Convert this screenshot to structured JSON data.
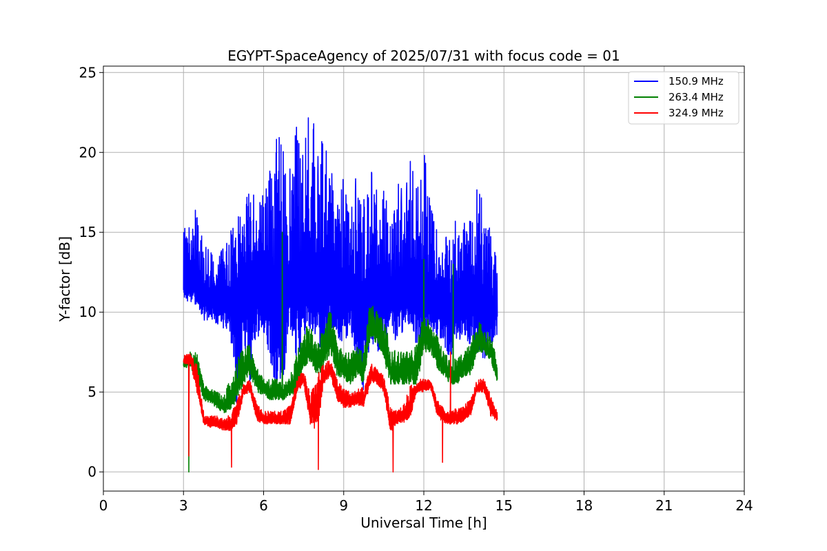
{
  "chart_data": {
    "type": "line",
    "title": "EGYPT-SpaceAgency of 2025/07/31 with focus code = 01",
    "xlabel": "Universal Time [h]",
    "ylabel": "Y-factor [dB]",
    "xlim": [
      0,
      24
    ],
    "ylim": [
      -1.2,
      25.4
    ],
    "xticks": [
      0,
      3,
      6,
      9,
      12,
      15,
      18,
      21,
      24
    ],
    "yticks": [
      0,
      5,
      10,
      15,
      20,
      25
    ],
    "grid": true,
    "legend_position": "top-right",
    "series": [
      {
        "name": "150.9 MHz",
        "color": "#0000ff",
        "x": [
          3.0,
          3.25,
          3.5,
          3.75,
          4.0,
          4.25,
          4.5,
          4.75,
          5.0,
          5.25,
          5.5,
          5.75,
          6.0,
          6.25,
          6.5,
          6.75,
          7.0,
          7.25,
          7.5,
          7.75,
          8.0,
          8.25,
          8.5,
          8.75,
          9.0,
          9.25,
          9.5,
          9.75,
          10.0,
          10.25,
          10.5,
          10.75,
          11.0,
          11.25,
          11.5,
          11.75,
          12.0,
          12.25,
          12.5,
          12.75,
          13.0,
          13.25,
          13.5,
          13.75,
          14.0,
          14.25,
          14.5,
          14.75
        ],
        "low": [
          11.0,
          10.5,
          10.5,
          9.5,
          9.5,
          9.3,
          9.0,
          8.8,
          4.0,
          8.5,
          5.5,
          8.5,
          8.5,
          7.0,
          5.0,
          6.0,
          9.0,
          7.0,
          8.5,
          9.0,
          8.5,
          7.0,
          9.0,
          8.5,
          8.0,
          9.0,
          7.0,
          5.0,
          8.0,
          7.5,
          8.0,
          9.0,
          8.0,
          9.0,
          8.5,
          8.0,
          8.5,
          9.0,
          8.5,
          8.0,
          7.0,
          8.5,
          8.0,
          8.0,
          7.5,
          7.0,
          8.0,
          8.5
        ],
        "high": [
          15.0,
          16.2,
          16.5,
          14.2,
          13.8,
          13.5,
          14.0,
          15.0,
          15.8,
          17.0,
          18.2,
          17.0,
          18.0,
          19.5,
          21.4,
          20.0,
          19.0,
          21.8,
          19.5,
          24.2,
          19.5,
          21.2,
          19.3,
          16.5,
          18.5,
          16.0,
          19.0,
          17.0,
          19.0,
          17.5,
          18.0,
          16.5,
          19.0,
          17.0,
          19.5,
          17.5,
          20.3,
          16.5,
          15.5,
          14.8,
          14.5,
          16.2,
          15.5,
          16.5,
          18.2,
          16.5,
          15.0,
          14.0
        ],
        "mid": [
          12.0,
          12.5,
          12.0,
          11.5,
          11.0,
          11.2,
          11.0,
          11.5,
          12.0,
          12.5,
          12.8,
          12.5,
          12.0,
          12.5,
          13.0,
          12.0,
          12.5,
          13.0,
          12.5,
          13.0,
          12.5,
          12.8,
          12.5,
          12.0,
          12.0,
          11.8,
          12.0,
          11.5,
          11.5,
          12.0,
          12.0,
          11.5,
          12.0,
          12.0,
          12.5,
          12.0,
          12.0,
          11.5,
          11.5,
          11.0,
          11.0,
          11.5,
          11.0,
          11.5,
          12.0,
          11.5,
          11.0,
          11.0
        ]
      },
      {
        "name": "263.4 MHz",
        "color": "#008000",
        "x": [
          3.0,
          3.25,
          3.5,
          3.75,
          4.0,
          4.25,
          4.5,
          4.75,
          5.0,
          5.25,
          5.5,
          5.75,
          6.0,
          6.25,
          6.5,
          6.75,
          7.0,
          7.25,
          7.5,
          7.75,
          8.0,
          8.25,
          8.5,
          8.75,
          9.0,
          9.25,
          9.5,
          9.75,
          10.0,
          10.25,
          10.5,
          10.75,
          11.0,
          11.25,
          11.5,
          11.75,
          12.0,
          12.25,
          12.5,
          12.75,
          13.0,
          13.25,
          13.5,
          13.75,
          14.0,
          14.25,
          14.5,
          14.75
        ],
        "low": [
          6.5,
          6.5,
          6.0,
          4.5,
          4.3,
          4.0,
          3.7,
          3.8,
          4.5,
          5.5,
          6.0,
          5.0,
          4.8,
          4.5,
          4.5,
          4.5,
          4.8,
          5.0,
          6.5,
          7.0,
          6.0,
          6.5,
          7.5,
          6.0,
          5.8,
          5.5,
          6.0,
          5.5,
          8.5,
          8.0,
          7.0,
          5.5,
          5.5,
          5.5,
          5.5,
          5.5,
          7.5,
          7.5,
          6.5,
          6.0,
          5.5,
          5.5,
          6.0,
          6.0,
          7.5,
          7.5,
          7.0,
          5.5
        ],
        "high": [
          7.0,
          7.5,
          7.5,
          5.5,
          5.2,
          5.0,
          4.8,
          5.8,
          7.0,
          7.8,
          8.0,
          6.5,
          5.8,
          5.8,
          5.8,
          5.5,
          6.0,
          7.5,
          9.0,
          9.2,
          8.0,
          9.0,
          10.3,
          8.0,
          7.5,
          7.5,
          7.8,
          7.5,
          10.8,
          10.0,
          9.5,
          8.0,
          7.5,
          7.5,
          7.5,
          8.0,
          10.0,
          9.2,
          8.5,
          7.5,
          7.0,
          7.2,
          7.5,
          8.0,
          9.5,
          9.0,
          8.5,
          7.0
        ],
        "mid": [
          6.8,
          7.0,
          7.0,
          5.0,
          4.8,
          4.5,
          4.2,
          4.5,
          5.5,
          6.5,
          7.0,
          5.8,
          5.3,
          5.2,
          5.2,
          5.0,
          5.3,
          6.0,
          7.5,
          8.0,
          7.0,
          7.5,
          8.8,
          7.0,
          6.5,
          6.5,
          7.0,
          6.5,
          9.5,
          9.0,
          8.0,
          6.5,
          6.5,
          6.5,
          6.5,
          7.0,
          9.0,
          8.5,
          7.5,
          6.8,
          6.3,
          6.3,
          6.8,
          7.0,
          8.5,
          8.2,
          7.8,
          6.0
        ],
        "spikes": [
          [
            3.2,
            0.0
          ],
          [
            6.7,
            15.0
          ],
          [
            12.0,
            13.3
          ],
          [
            13.1,
            13.0
          ]
        ]
      },
      {
        "name": "324.9 MHz",
        "color": "#ff0000",
        "x": [
          3.0,
          3.25,
          3.5,
          3.75,
          4.0,
          4.25,
          4.5,
          4.75,
          5.0,
          5.25,
          5.5,
          5.75,
          6.0,
          6.25,
          6.5,
          6.75,
          7.0,
          7.25,
          7.5,
          7.75,
          8.0,
          8.25,
          8.5,
          8.75,
          9.0,
          9.25,
          9.5,
          9.75,
          10.0,
          10.25,
          10.5,
          10.75,
          11.0,
          11.25,
          11.5,
          11.75,
          12.0,
          12.25,
          12.5,
          12.75,
          13.0,
          13.25,
          13.5,
          13.75,
          14.0,
          14.25,
          14.5,
          14.75
        ],
        "low": [
          6.7,
          6.8,
          5.0,
          3.0,
          2.8,
          2.8,
          2.6,
          2.6,
          3.0,
          4.8,
          5.0,
          3.2,
          3.0,
          3.0,
          3.0,
          3.0,
          3.0,
          5.0,
          5.5,
          3.0,
          2.5,
          5.5,
          6.0,
          4.5,
          4.0,
          4.0,
          4.2,
          4.0,
          5.5,
          5.5,
          5.0,
          2.5,
          3.0,
          3.0,
          3.5,
          5.0,
          5.0,
          5.2,
          3.5,
          3.0,
          3.0,
          3.0,
          3.2,
          3.5,
          5.0,
          5.0,
          3.5,
          3.2
        ],
        "high": [
          7.3,
          7.4,
          6.8,
          3.8,
          3.5,
          3.5,
          3.3,
          3.6,
          4.5,
          5.5,
          5.8,
          4.2,
          3.8,
          3.8,
          3.8,
          3.8,
          4.2,
          5.8,
          6.5,
          4.8,
          6.0,
          6.8,
          7.0,
          5.8,
          5.2,
          5.0,
          5.2,
          5.3,
          6.8,
          6.5,
          6.0,
          4.0,
          3.8,
          4.2,
          5.5,
          5.8,
          5.8,
          5.8,
          4.5,
          4.0,
          3.8,
          4.0,
          4.2,
          4.5,
          5.8,
          5.8,
          4.8,
          3.8
        ],
        "mid": [
          7.0,
          7.1,
          6.0,
          3.3,
          3.1,
          3.1,
          3.0,
          3.0,
          3.8,
          5.2,
          5.4,
          3.7,
          3.4,
          3.4,
          3.4,
          3.4,
          3.6,
          5.4,
          6.0,
          3.8,
          4.5,
          6.2,
          6.5,
          5.2,
          4.6,
          4.5,
          4.7,
          4.6,
          6.2,
          6.0,
          5.5,
          3.2,
          3.4,
          3.6,
          4.5,
          5.4,
          5.4,
          5.5,
          4.0,
          3.5,
          3.4,
          3.5,
          3.7,
          4.0,
          5.4,
          5.4,
          4.2,
          3.5
        ],
        "spikes": [
          [
            3.2,
            1.0
          ],
          [
            4.8,
            0.3
          ],
          [
            8.05,
            0.15
          ],
          [
            10.85,
            0.0
          ],
          [
            12.7,
            0.6
          ],
          [
            13.0,
            7.5
          ]
        ]
      }
    ]
  }
}
